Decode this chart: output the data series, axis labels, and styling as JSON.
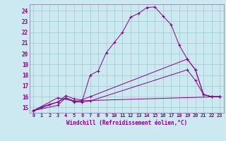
{
  "xlabel": "Windchill (Refroidissement éolien,°C)",
  "background_color": "#cce8f0",
  "line_color": "#880088",
  "grid_color": "#99cccc",
  "spine_color": "#8888aa",
  "xlim": [
    -0.5,
    23.5
  ],
  "ylim": [
    14.5,
    24.6
  ],
  "xticks": [
    0,
    1,
    2,
    3,
    4,
    5,
    6,
    7,
    8,
    9,
    10,
    11,
    12,
    13,
    14,
    15,
    16,
    17,
    18,
    19,
    20,
    21,
    22,
    23
  ],
  "yticks": [
    15,
    16,
    17,
    18,
    19,
    20,
    21,
    22,
    23,
    24
  ],
  "series": [
    {
      "x": [
        0,
        1,
        2,
        3,
        4,
        5,
        6,
        7,
        8,
        9,
        10,
        11,
        12,
        13,
        14,
        15,
        16,
        17,
        18,
        19,
        20,
        21,
        22,
        23
      ],
      "y": [
        14.7,
        15.05,
        15.3,
        15.5,
        15.9,
        15.6,
        15.55,
        18.0,
        18.4,
        20.1,
        21.05,
        22.0,
        23.4,
        23.75,
        24.3,
        24.35,
        23.5,
        22.7,
        20.8,
        19.5,
        18.5,
        16.2,
        16.0,
        16.0
      ]
    },
    {
      "x": [
        0,
        3,
        4,
        5,
        6,
        7,
        19,
        20,
        21,
        22,
        23
      ],
      "y": [
        14.7,
        15.5,
        16.1,
        15.8,
        15.7,
        16.0,
        19.5,
        18.5,
        16.2,
        16.0,
        16.0
      ]
    },
    {
      "x": [
        0,
        3,
        4,
        5,
        6,
        7,
        19,
        20,
        21,
        22,
        23
      ],
      "y": [
        14.7,
        15.2,
        15.9,
        15.5,
        15.5,
        15.6,
        18.5,
        17.5,
        16.2,
        16.0,
        16.0
      ]
    },
    {
      "x": [
        0,
        3,
        5,
        23
      ],
      "y": [
        14.7,
        15.9,
        15.6,
        16.0
      ]
    }
  ]
}
